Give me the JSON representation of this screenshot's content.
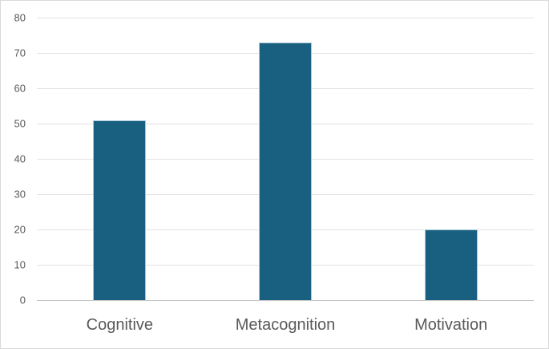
{
  "chart_data": {
    "type": "bar",
    "categories": [
      "Cognitive",
      "Metacognition",
      "Motivation"
    ],
    "values": [
      51,
      73,
      20
    ],
    "title": "",
    "xlabel": "",
    "ylabel": "",
    "ylim": [
      0,
      80
    ],
    "ytick_step": 10,
    "ytick_labels": [
      "0",
      "10",
      "20",
      "30",
      "40",
      "50",
      "60",
      "70",
      "80"
    ],
    "grid": "horizontal-only",
    "legend_position": "none"
  },
  "style": {
    "bar_fill_color": "#185f80",
    "bar_edge_color": "#a9c8d6",
    "gridline_color": "#e3e3e3",
    "axis_line_color": "#c2c2c2",
    "tick_label_color": "#595959",
    "category_label_color": "#595959",
    "chart_border_color": "#d9d9d9",
    "background_color": "#ffffff"
  }
}
